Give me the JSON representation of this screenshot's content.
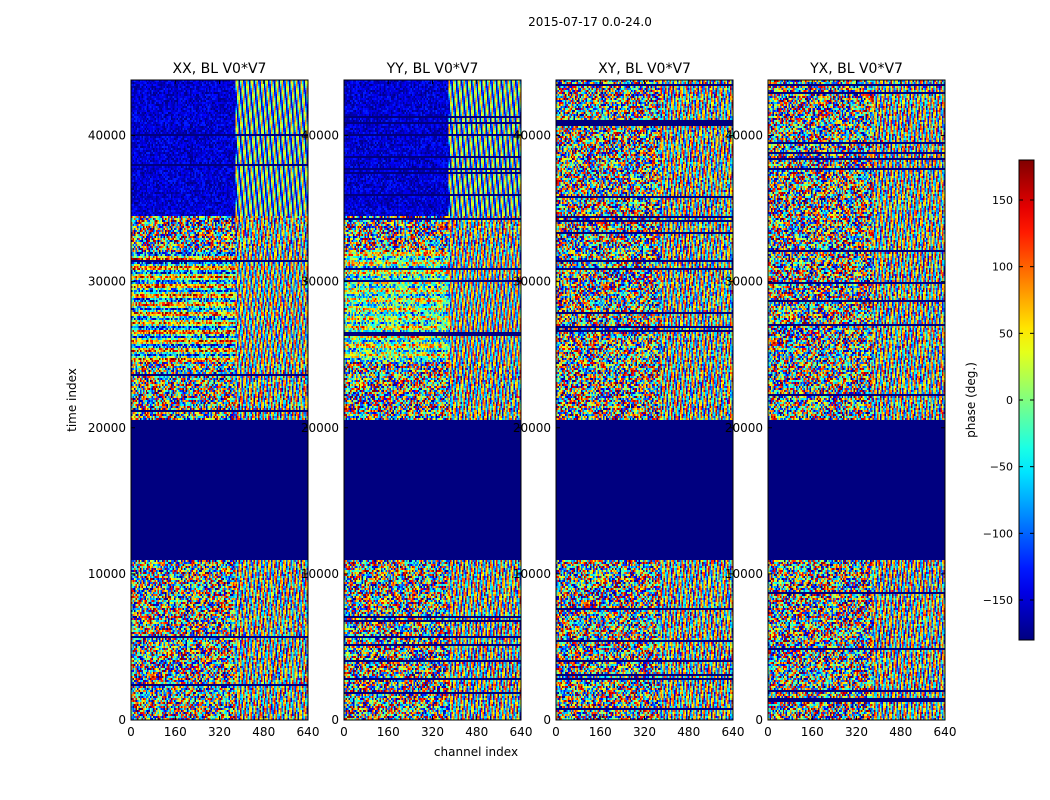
{
  "chart_data": {
    "type": "heatmap",
    "title": "2015-07-17 0.0-24.0",
    "xlabel": "channel index",
    "ylabel": "time index",
    "xlim": [
      0,
      640
    ],
    "ylim": [
      0,
      43800
    ],
    "xticks": [
      0,
      160,
      320,
      480,
      640
    ],
    "yticks": [
      0,
      10000,
      20000,
      30000,
      40000
    ],
    "panels": [
      {
        "title": "XX, BL V0*V7",
        "correlation": "XX",
        "baseline": "V0*V7"
      },
      {
        "title": "YY, BL V0*V7",
        "correlation": "YY",
        "baseline": "V0*V7"
      },
      {
        "title": "XY, BL V0*V7",
        "correlation": "XY",
        "baseline": "V0*V7"
      },
      {
        "title": "YX, BL V0*V7",
        "correlation": "YX",
        "baseline": "V0*V7"
      }
    ],
    "flagged_time_range": [
      11000,
      20500
    ],
    "flagged_value": -180,
    "colorbar": {
      "label": "phase (deg.)",
      "range": [
        -180,
        180
      ],
      "ticks": [
        -150,
        -100,
        -50,
        0,
        50,
        100,
        150
      ],
      "colormap": "jet"
    }
  }
}
